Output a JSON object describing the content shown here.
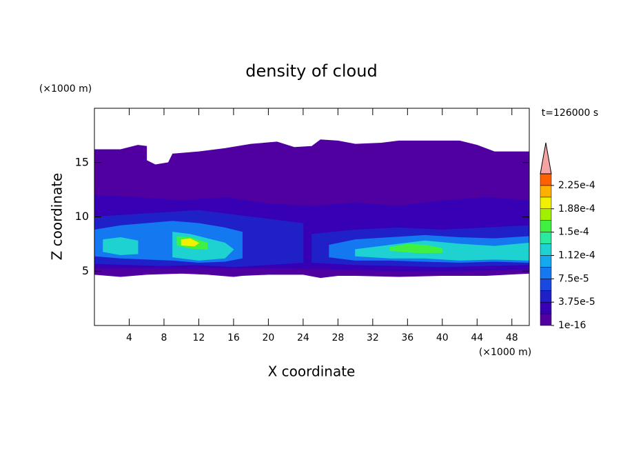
{
  "chart_data": {
    "type": "contour",
    "title": "density of cloud",
    "xlabel": "X coordinate",
    "ylabel": "Z coordinate",
    "xunit": "(×1000 m)",
    "yunit": "(×1000 m)",
    "annotation": "t=126000 s",
    "xlim": [
      0,
      50
    ],
    "ylim": [
      0,
      20
    ],
    "xticks": [
      4,
      8,
      12,
      16,
      20,
      24,
      28,
      32,
      36,
      40,
      44,
      48
    ],
    "yticks": [
      5,
      10,
      15
    ],
    "colorbar": {
      "lim": [
        1e-16,
        0.00024375
      ],
      "colors": [
        "#5000a0",
        "#3800b4",
        "#2020c8",
        "#1848e0",
        "#1478f0",
        "#14a8f0",
        "#1ed2d2",
        "#28eaa0",
        "#40f040",
        "#a0f000",
        "#f0f000",
        "#ffb000",
        "#ff6000"
      ],
      "extend": "max",
      "extend_color": "#f4a4a4",
      "ticks": [
        {
          "value": 1e-16,
          "label": "1e-16"
        },
        {
          "value": 3.75e-05,
          "label": "3.75e-5"
        },
        {
          "value": 7.5e-05,
          "label": "7.5e-5"
        },
        {
          "value": 0.0001125,
          "label": "1.12e-4"
        },
        {
          "value": 0.00015,
          "label": "1.5e-4"
        },
        {
          "value": 0.0001875,
          "label": "1.88e-4"
        },
        {
          "value": 0.000225,
          "label": "2.25e-4"
        }
      ]
    },
    "regions": [
      {
        "value": 1e-16,
        "x": [
          0,
          3,
          5,
          6,
          6,
          7,
          8.5,
          9,
          12,
          15,
          18,
          21,
          23,
          25,
          26,
          28,
          30,
          33,
          35,
          38,
          42,
          44,
          46,
          50,
          50,
          45,
          40,
          35,
          30,
          28,
          26,
          24,
          20,
          17,
          16,
          13,
          10,
          6,
          3,
          0
        ],
        "z": [
          16.2,
          16.2,
          16.6,
          16.5,
          15.2,
          14.8,
          15,
          15.8,
          16,
          16.3,
          16.7,
          16.9,
          16.4,
          16.5,
          17.1,
          17,
          16.7,
          16.8,
          17,
          17,
          17,
          16.6,
          16,
          16,
          4.8,
          4.6,
          4.6,
          4.5,
          4.6,
          4.6,
          4.4,
          4.7,
          4.7,
          4.6,
          4.5,
          4.7,
          4.8,
          4.7,
          4.5,
          4.7
        ]
      },
      {
        "value": 1.875e-05,
        "x": [
          0,
          5,
          10,
          15,
          20,
          25,
          30,
          35,
          40,
          45,
          50,
          50,
          40,
          30,
          27,
          20,
          10,
          0
        ],
        "z": [
          12,
          11.8,
          11.5,
          11.8,
          11.2,
          11,
          11.3,
          11,
          11.5,
          11.8,
          11.5,
          5.2,
          5,
          5.1,
          5.2,
          5.3,
          5.3,
          5.3
        ]
      },
      {
        "value": 3.75e-05,
        "x": [
          0,
          4,
          8,
          12,
          16,
          20,
          24,
          24,
          20,
          16,
          12,
          8,
          4,
          0
        ],
        "z": [
          10,
          10.2,
          10.4,
          10.6,
          10.2,
          9.8,
          9.4,
          5.8,
          5.6,
          5.4,
          5.6,
          5.5,
          5.6,
          5.7
        ]
      },
      {
        "value": 3.75e-05,
        "x": [
          25,
          30,
          35,
          40,
          45,
          50,
          50,
          45,
          40,
          35,
          30,
          25
        ],
        "z": [
          8.4,
          8.8,
          9,
          8.8,
          9,
          9.2,
          5.6,
          5.5,
          5.4,
          5.5,
          5.6,
          5.8
        ]
      },
      {
        "value": 7.5e-05,
        "x": [
          0,
          3,
          6,
          9,
          12,
          15,
          17,
          17,
          15,
          12,
          9,
          6,
          3,
          0
        ],
        "z": [
          8.8,
          9.2,
          9.4,
          9.6,
          9.4,
          9,
          8.6,
          6.2,
          5.9,
          5.8,
          6,
          6.1,
          6.2,
          6.4
        ]
      },
      {
        "value": 7.5e-05,
        "x": [
          27,
          30,
          34,
          38,
          42,
          46,
          50,
          50,
          46,
          42,
          38,
          34,
          30,
          27
        ],
        "z": [
          7.4,
          7.9,
          8.1,
          8.3,
          8.1,
          8,
          8.2,
          5.8,
          5.9,
          5.8,
          5.9,
          6,
          6,
          6.3
        ]
      },
      {
        "value": 0.0001125,
        "x": [
          1,
          3,
          5,
          5,
          3,
          1
        ],
        "z": [
          7.9,
          8.1,
          7.8,
          6.6,
          6.5,
          6.8
        ]
      },
      {
        "value": 0.0001125,
        "x": [
          9,
          11,
          13,
          15,
          16,
          15,
          12,
          9
        ],
        "z": [
          8.6,
          8.4,
          8,
          7.6,
          7,
          6.2,
          6,
          6.3
        ]
      },
      {
        "value": 0.0001125,
        "x": [
          30,
          34,
          38,
          42,
          46,
          50,
          50,
          46,
          42,
          38,
          34,
          30
        ],
        "z": [
          7,
          7.4,
          7.8,
          7.5,
          7.3,
          7.6,
          6,
          6.1,
          6,
          6.2,
          6.2,
          6.4
        ]
      },
      {
        "value": 0.00015,
        "x": [
          9.5,
          11,
          13,
          13,
          11,
          9.5
        ],
        "z": [
          8.2,
          8.1,
          7.6,
          7,
          7.1,
          7.4
        ]
      },
      {
        "value": 0.00015,
        "x": [
          34,
          36,
          38,
          40,
          40,
          37,
          34
        ],
        "z": [
          7.2,
          7.5,
          7.4,
          7.1,
          6.7,
          6.7,
          6.9
        ]
      },
      {
        "value": 0.0001875,
        "x": [
          10,
          11,
          12,
          11.5,
          10
        ],
        "z": [
          7.9,
          8,
          7.6,
          7.3,
          7.4
        ]
      }
    ]
  }
}
